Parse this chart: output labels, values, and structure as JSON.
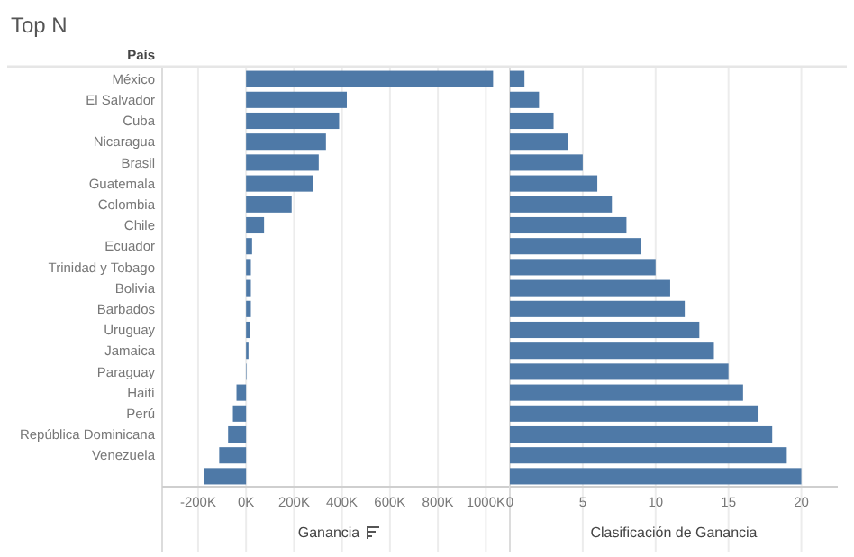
{
  "chart_data": [
    {
      "type": "bar",
      "title": "Top N",
      "ylabel": "País",
      "xlabel": "Ganancia",
      "orientation": "horizontal",
      "grid": "x",
      "color": "#4e79a7",
      "categories": [
        "México",
        "El Salvador",
        "Cuba",
        "Nicaragua",
        "Brasil",
        "Guatemala",
        "Colombia",
        "Chile",
        "Ecuador",
        "Trinidad y Tobago",
        "Bolivia",
        "Barbados",
        "Uruguay",
        "Jamaica",
        "Paraguay",
        "Haití",
        "Perú",
        "República Dominicana",
        "Venezuela",
        null
      ],
      "values": [
        1030000,
        420000,
        388000,
        333000,
        303000,
        280000,
        190000,
        75000,
        25000,
        20000,
        20000,
        20000,
        15000,
        10000,
        2000,
        -40000,
        -55000,
        -75000,
        -112000,
        -175000
      ],
      "xlim": [
        -350000,
        1100000
      ],
      "xticks": [
        {
          "value": -200000,
          "label": "-200K"
        },
        {
          "value": 0,
          "label": "0K"
        },
        {
          "value": 200000,
          "label": "200K"
        },
        {
          "value": 400000,
          "label": "400K"
        },
        {
          "value": 600000,
          "label": "600K"
        },
        {
          "value": 800000,
          "label": "800K"
        },
        {
          "value": 1000000,
          "label": "1000K"
        }
      ]
    },
    {
      "type": "bar",
      "xlabel": "Clasificación de Ganancia",
      "orientation": "horizontal",
      "grid": "x",
      "color": "#4e79a7",
      "categories": [
        null,
        null,
        null,
        null,
        null,
        null,
        null,
        null,
        null,
        null,
        null,
        null,
        null,
        null,
        null,
        null,
        null,
        null,
        null,
        null
      ],
      "values": [
        1,
        2,
        3,
        4,
        5,
        6,
        7,
        8,
        9,
        10,
        11,
        12,
        13,
        14,
        15,
        16,
        17,
        18,
        19,
        20
      ],
      "xlim": [
        0,
        22.5
      ],
      "xticks": [
        0,
        5,
        10,
        15,
        20
      ]
    }
  ]
}
